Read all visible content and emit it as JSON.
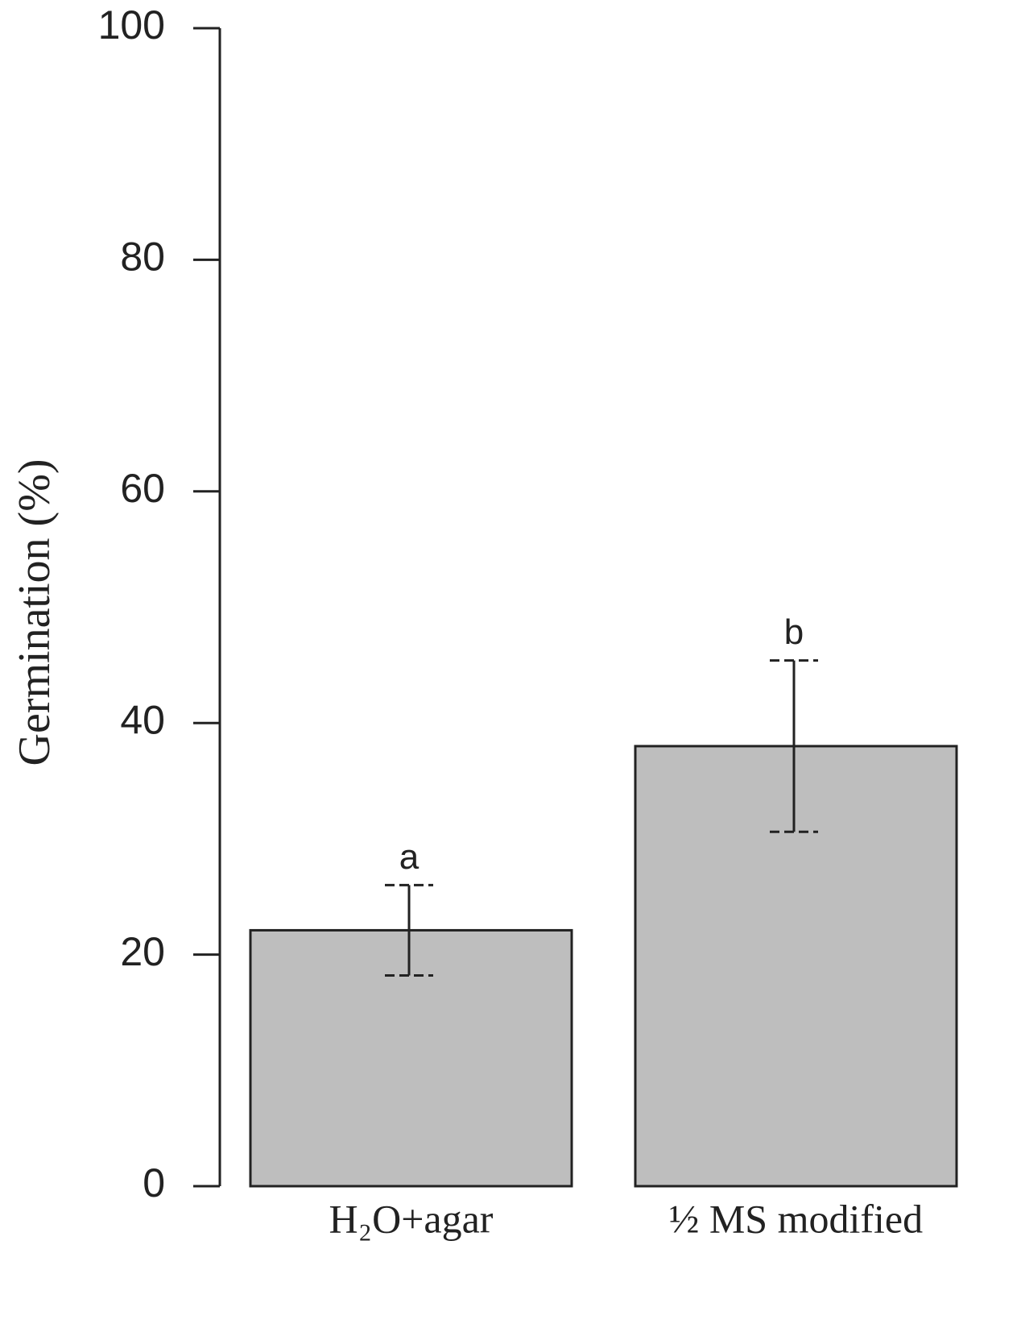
{
  "chart_data": {
    "type": "bar",
    "y_label": "Germination (%)",
    "categories": [
      "H₂O+agar",
      "½ MS modified"
    ],
    "values": [
      22.1,
      38.0
    ],
    "errors": [
      3.9,
      7.4
    ],
    "annotations": [
      "a",
      "b"
    ],
    "color": "#bebebe",
    "ylim": [
      0,
      100
    ],
    "yticks": [
      0,
      20,
      40,
      60,
      80,
      100
    ],
    "grid": false
  }
}
